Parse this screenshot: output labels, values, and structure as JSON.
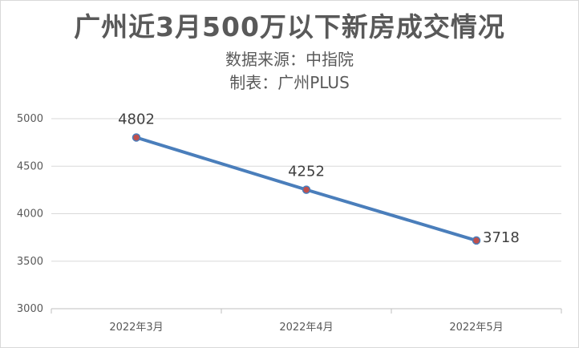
{
  "chart_data": {
    "type": "line",
    "title": "广州近3月500万以下新房成交情况",
    "subtitles": [
      "数据来源：中指院",
      "制表：广州PLUS"
    ],
    "categories": [
      "2022年3月",
      "2022年4月",
      "2022年5月"
    ],
    "values": [
      4802,
      4252,
      3718
    ],
    "data_labels": [
      "4802",
      "4252",
      "3718"
    ],
    "y_ticks": [
      "3000",
      "3500",
      "4000",
      "4500",
      "5000"
    ],
    "ylim": [
      3000,
      5000
    ],
    "grid": true,
    "legend": "none",
    "colors": {
      "line": "#4a7ebb",
      "marker_fill": "#c0504d",
      "gridline": "#d9d9d9",
      "axis": "#bfbfbf",
      "text": "#595959"
    }
  }
}
